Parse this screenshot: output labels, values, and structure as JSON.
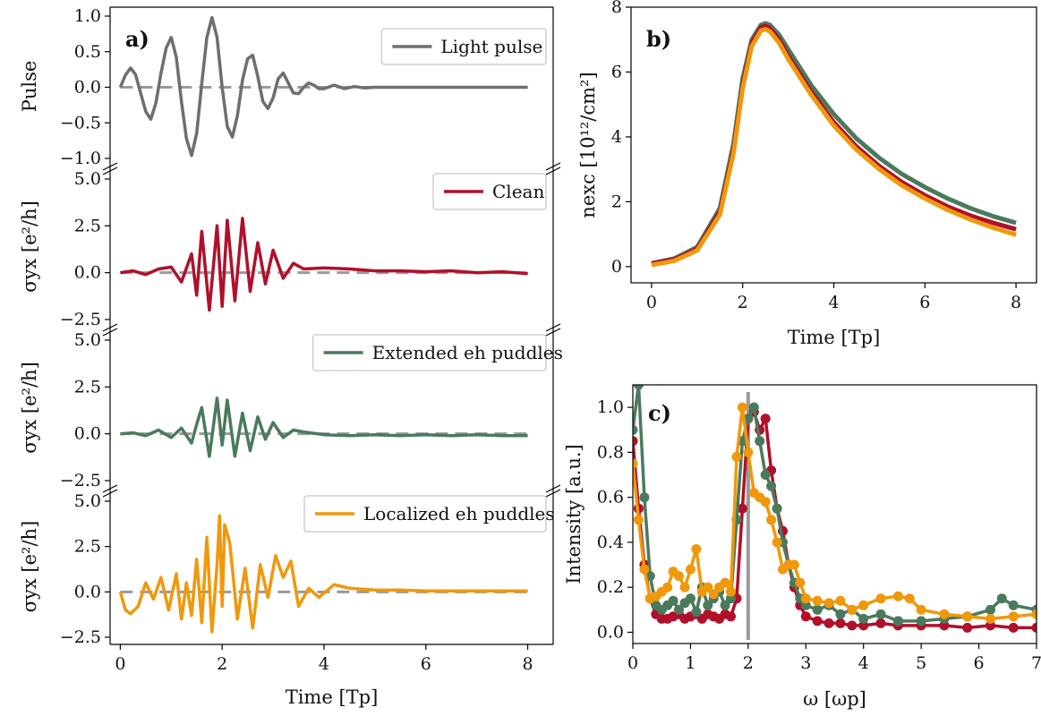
{
  "chart_data": [
    {
      "id": "a",
      "type": "line",
      "panel_label": "a)",
      "xlabel": "Time [Tp]",
      "xlim": [
        -0.2,
        8.5
      ],
      "xticks": [
        0,
        2,
        4,
        6,
        8
      ],
      "subplots": [
        {
          "ylabel": "Pulse",
          "ylim": [
            -1.0,
            1.0
          ],
          "yticks": [
            -1.0,
            -0.5,
            0.0,
            0.5,
            1.0
          ],
          "ytick_labels": [
            "−1.0",
            "−0.5",
            "0.0",
            "0.5",
            "1.0"
          ],
          "legend": "Light pulse",
          "color": "#6e6e6e",
          "legend_pos": "top-right",
          "t": [
            0,
            0.1,
            0.2,
            0.3,
            0.4,
            0.5,
            0.6,
            0.7,
            0.8,
            0.9,
            1.0,
            1.1,
            1.2,
            1.3,
            1.4,
            1.5,
            1.6,
            1.7,
            1.8,
            1.9,
            2.0,
            2.1,
            2.2,
            2.3,
            2.4,
            2.5,
            2.6,
            2.7,
            2.8,
            2.9,
            3.0,
            3.1,
            3.2,
            3.3,
            3.4,
            3.5,
            3.6,
            3.7,
            3.8,
            3.9,
            4.0,
            4.2,
            4.4,
            4.6,
            4.8,
            5.0,
            5.5,
            6.0,
            6.5,
            7.0,
            7.5,
            8.0
          ],
          "y": [
            0.0,
            0.17,
            0.27,
            0.18,
            -0.08,
            -0.34,
            -0.45,
            -0.22,
            0.2,
            0.55,
            0.7,
            0.42,
            -0.2,
            -0.72,
            -0.96,
            -0.65,
            0.05,
            0.7,
            0.98,
            0.7,
            0.0,
            -0.55,
            -0.7,
            -0.4,
            0.1,
            0.4,
            0.45,
            0.15,
            -0.2,
            -0.3,
            -0.15,
            0.12,
            0.2,
            0.06,
            -0.08,
            -0.09,
            0.0,
            0.06,
            0.03,
            -0.02,
            -0.02,
            0.03,
            -0.02,
            0.01,
            -0.01,
            0.0,
            0.0,
            0.0,
            0.0,
            0.0,
            0.0,
            0.0
          ]
        },
        {
          "ylabel": "σyx [e²/h]",
          "ylim": [
            -2.5,
            5.0
          ],
          "yticks": [
            -2.5,
            0.0,
            2.5,
            5.0
          ],
          "ytick_labels": [
            "−2.5",
            "0.0",
            "2.5",
            "5.0"
          ],
          "legend": "Clean",
          "color": "#b0102a",
          "legend_pos": "top-right",
          "t": [
            0,
            0.25,
            0.5,
            0.75,
            1.0,
            1.2,
            1.4,
            1.5,
            1.6,
            1.75,
            1.9,
            2.0,
            2.1,
            2.25,
            2.4,
            2.55,
            2.7,
            2.85,
            3.0,
            3.2,
            3.4,
            3.6,
            4.0,
            4.5,
            5.0,
            5.5,
            6.0,
            6.5,
            7.0,
            7.5,
            8.0
          ],
          "y": [
            0.0,
            0.1,
            -0.1,
            0.2,
            0.3,
            -0.5,
            1.0,
            -1.2,
            2.2,
            -2.0,
            2.5,
            -1.8,
            2.8,
            -1.5,
            2.9,
            -1.0,
            1.6,
            -0.6,
            1.2,
            -0.3,
            0.5,
            0.2,
            0.25,
            0.2,
            0.1,
            0.1,
            0.05,
            0.1,
            0.0,
            0.05,
            -0.05
          ]
        },
        {
          "ylabel": "σyx [e²/h]",
          "ylim": [
            -2.5,
            5.0
          ],
          "yticks": [
            -2.5,
            0.0,
            2.5,
            5.0
          ],
          "ytick_labels": [
            "−2.5",
            "0.0",
            "2.5",
            "5.0"
          ],
          "legend": "Extended eh puddles",
          "color": "#4a7a5c",
          "legend_pos": "top-right",
          "t": [
            0,
            0.25,
            0.5,
            0.75,
            1.0,
            1.2,
            1.4,
            1.5,
            1.6,
            1.75,
            1.9,
            2.0,
            2.1,
            2.25,
            2.4,
            2.55,
            2.7,
            2.85,
            3.0,
            3.2,
            3.4,
            3.6,
            4.0,
            4.5,
            5.0,
            5.5,
            6.0,
            6.5,
            7.0,
            7.5,
            8.0
          ],
          "y": [
            0.0,
            0.05,
            -0.1,
            0.2,
            -0.2,
            0.3,
            -0.5,
            0.5,
            1.4,
            -1.2,
            1.9,
            -0.6,
            1.8,
            -1.2,
            1.1,
            -0.9,
            0.9,
            -0.3,
            0.6,
            -0.2,
            0.2,
            0.1,
            -0.05,
            -0.1,
            -0.05,
            -0.1,
            -0.05,
            -0.1,
            -0.05,
            -0.1,
            -0.1
          ]
        },
        {
          "ylabel": "σyx [e²/h]",
          "ylim": [
            -2.5,
            5.0
          ],
          "yticks": [
            -2.5,
            0.0,
            2.5,
            5.0
          ],
          "ytick_labels": [
            "−2.5",
            "0.0",
            "2.5",
            "5.0"
          ],
          "legend": "Localized eh puddles",
          "color": "#f0980c",
          "legend_pos": "top-right",
          "t": [
            0,
            0.1,
            0.2,
            0.35,
            0.5,
            0.65,
            0.8,
            0.95,
            1.1,
            1.2,
            1.3,
            1.4,
            1.5,
            1.6,
            1.7,
            1.8,
            1.9,
            1.95,
            2.0,
            2.05,
            2.15,
            2.3,
            2.45,
            2.6,
            2.75,
            2.9,
            3.05,
            3.2,
            3.35,
            3.5,
            3.7,
            3.9,
            4.2,
            4.5,
            5.0,
            5.5,
            6.0,
            6.5,
            7.0,
            7.5,
            8.0
          ],
          "y": [
            0.0,
            -1.0,
            -1.2,
            -0.8,
            0.5,
            -0.4,
            0.8,
            -1.0,
            1.0,
            -1.5,
            0.5,
            -1.3,
            1.8,
            -1.7,
            3.0,
            -2.2,
            1.5,
            4.2,
            -0.8,
            3.7,
            2.7,
            -1.5,
            1.3,
            -2.0,
            1.5,
            -0.3,
            2.0,
            0.8,
            1.7,
            -0.8,
            0.2,
            -0.3,
            0.4,
            0.2,
            0.1,
            0.1,
            0.05,
            0.05,
            0.05,
            0.05,
            0.05
          ]
        }
      ]
    },
    {
      "id": "b",
      "type": "line",
      "panel_label": "b)",
      "xlabel": "Time [Tp]",
      "ylabel": "nexc [10¹²/cm²]",
      "xlim": [
        -0.45,
        8.45
      ],
      "ylim": [
        -0.5,
        8.0
      ],
      "xticks": [
        0,
        2,
        4,
        6,
        8
      ],
      "yticks": [
        0,
        2,
        4,
        6,
        8
      ],
      "series": [
        {
          "color": "#4a7a5c",
          "x": [
            0,
            0.5,
            1.0,
            1.5,
            1.8,
            2.0,
            2.2,
            2.4,
            2.5,
            2.6,
            2.8,
            3.0,
            3.5,
            4.0,
            4.5,
            5.0,
            5.5,
            6.0,
            6.5,
            7.0,
            7.5,
            8.0
          ],
          "y": [
            0.1,
            0.25,
            0.6,
            1.8,
            3.8,
            5.8,
            7.0,
            7.45,
            7.5,
            7.45,
            7.15,
            6.7,
            5.6,
            4.7,
            3.95,
            3.35,
            2.85,
            2.45,
            2.1,
            1.8,
            1.55,
            1.35
          ]
        },
        {
          "color": "#b0102a",
          "x": [
            0,
            0.5,
            1.0,
            1.5,
            1.8,
            2.0,
            2.2,
            2.4,
            2.5,
            2.6,
            2.8,
            3.0,
            3.5,
            4.0,
            4.5,
            5.0,
            5.5,
            6.0,
            6.5,
            7.0,
            7.5,
            8.0
          ],
          "y": [
            0.1,
            0.22,
            0.55,
            1.7,
            3.6,
            5.6,
            6.9,
            7.38,
            7.42,
            7.35,
            7.0,
            6.5,
            5.4,
            4.45,
            3.7,
            3.1,
            2.6,
            2.2,
            1.85,
            1.57,
            1.35,
            1.15
          ]
        },
        {
          "color": "#f0980c",
          "x": [
            0,
            0.5,
            1.0,
            1.5,
            1.8,
            2.0,
            2.2,
            2.4,
            2.5,
            2.6,
            2.8,
            3.0,
            3.5,
            4.0,
            4.5,
            5.0,
            5.5,
            6.0,
            6.5,
            7.0,
            7.5,
            8.0
          ],
          "y": [
            0.05,
            0.18,
            0.5,
            1.6,
            3.5,
            5.5,
            6.8,
            7.28,
            7.32,
            7.25,
            6.9,
            6.4,
            5.3,
            4.35,
            3.6,
            3.0,
            2.5,
            2.1,
            1.75,
            1.45,
            1.2,
            0.98
          ]
        }
      ]
    },
    {
      "id": "c",
      "type": "line",
      "panel_label": "c)",
      "xlabel": "ω [ωp]",
      "ylabel": "Intensity [a.u.]",
      "xlim": [
        0,
        7
      ],
      "ylim": [
        -0.05,
        1.1
      ],
      "xticks": [
        0,
        1,
        2,
        3,
        4,
        5,
        6,
        7
      ],
      "yticks": [
        0.0,
        0.2,
        0.4,
        0.6,
        0.8,
        1.0
      ],
      "ytick_labels": [
        "0.0",
        "0.2",
        "0.4",
        "0.6",
        "0.8",
        "1.0"
      ],
      "vline": {
        "x": 2.0,
        "color": "#9a9a9a"
      },
      "series": [
        {
          "color": "#b0102a",
          "x": [
            0.0,
            0.1,
            0.2,
            0.3,
            0.4,
            0.5,
            0.6,
            0.7,
            0.8,
            0.9,
            1.0,
            1.1,
            1.2,
            1.3,
            1.4,
            1.5,
            1.6,
            1.7,
            1.8,
            1.9,
            2.0,
            2.1,
            2.2,
            2.3,
            2.4,
            2.5,
            2.6,
            2.7,
            2.8,
            2.9,
            3.0,
            3.2,
            3.4,
            3.6,
            3.8,
            4.0,
            4.3,
            4.6,
            5.0,
            5.4,
            5.8,
            6.2,
            6.6,
            7.0
          ],
          "y": [
            0.85,
            0.55,
            0.3,
            0.15,
            0.08,
            0.06,
            0.06,
            0.07,
            0.08,
            0.06,
            0.07,
            0.08,
            0.06,
            0.08,
            0.07,
            0.06,
            0.08,
            0.07,
            0.15,
            0.55,
            0.95,
            0.98,
            0.9,
            0.95,
            0.72,
            0.55,
            0.45,
            0.3,
            0.2,
            0.12,
            0.07,
            0.05,
            0.04,
            0.04,
            0.03,
            0.03,
            0.04,
            0.03,
            0.03,
            0.03,
            0.02,
            0.03,
            0.02,
            0.02
          ]
        },
        {
          "color": "#4a7a5c",
          "x": [
            0.0,
            0.1,
            0.2,
            0.3,
            0.4,
            0.5,
            0.6,
            0.7,
            0.8,
            0.9,
            1.0,
            1.1,
            1.2,
            1.3,
            1.4,
            1.5,
            1.6,
            1.7,
            1.8,
            1.9,
            2.0,
            2.1,
            2.2,
            2.3,
            2.4,
            2.5,
            2.6,
            2.7,
            2.8,
            2.9,
            3.0,
            3.2,
            3.4,
            3.6,
            3.8,
            4.0,
            4.3,
            4.6,
            5.0,
            5.4,
            5.8,
            6.2,
            6.4,
            6.6,
            7.0
          ],
          "y": [
            0.9,
            1.1,
            0.6,
            0.25,
            0.12,
            0.1,
            0.12,
            0.14,
            0.1,
            0.13,
            0.15,
            0.09,
            0.2,
            0.12,
            0.15,
            0.18,
            0.12,
            0.15,
            0.5,
            0.85,
            0.95,
            1.0,
            0.85,
            0.7,
            0.65,
            0.55,
            0.4,
            0.3,
            0.22,
            0.15,
            0.12,
            0.1,
            0.12,
            0.08,
            0.1,
            0.06,
            0.08,
            0.05,
            0.05,
            0.06,
            0.07,
            0.1,
            0.15,
            0.12,
            0.1
          ]
        },
        {
          "color": "#f0980c",
          "x": [
            0.0,
            0.1,
            0.2,
            0.3,
            0.4,
            0.5,
            0.6,
            0.7,
            0.8,
            0.9,
            1.0,
            1.1,
            1.2,
            1.3,
            1.4,
            1.5,
            1.6,
            1.7,
            1.8,
            1.9,
            2.0,
            2.1,
            2.2,
            2.3,
            2.4,
            2.5,
            2.6,
            2.7,
            2.8,
            2.9,
            3.0,
            3.2,
            3.4,
            3.6,
            3.8,
            4.0,
            4.3,
            4.6,
            4.8,
            5.0,
            5.4,
            5.8,
            6.2,
            6.6,
            7.0
          ],
          "y": [
            0.75,
            0.5,
            0.28,
            0.15,
            0.16,
            0.18,
            0.2,
            0.27,
            0.25,
            0.2,
            0.28,
            0.37,
            0.18,
            0.2,
            0.17,
            0.2,
            0.22,
            0.18,
            0.78,
            1.0,
            0.8,
            0.62,
            0.6,
            0.58,
            0.5,
            0.4,
            0.28,
            0.3,
            0.3,
            0.22,
            0.15,
            0.14,
            0.13,
            0.14,
            0.1,
            0.12,
            0.15,
            0.16,
            0.15,
            0.1,
            0.08,
            0.07,
            0.06,
            0.07,
            0.08
          ]
        }
      ]
    }
  ]
}
